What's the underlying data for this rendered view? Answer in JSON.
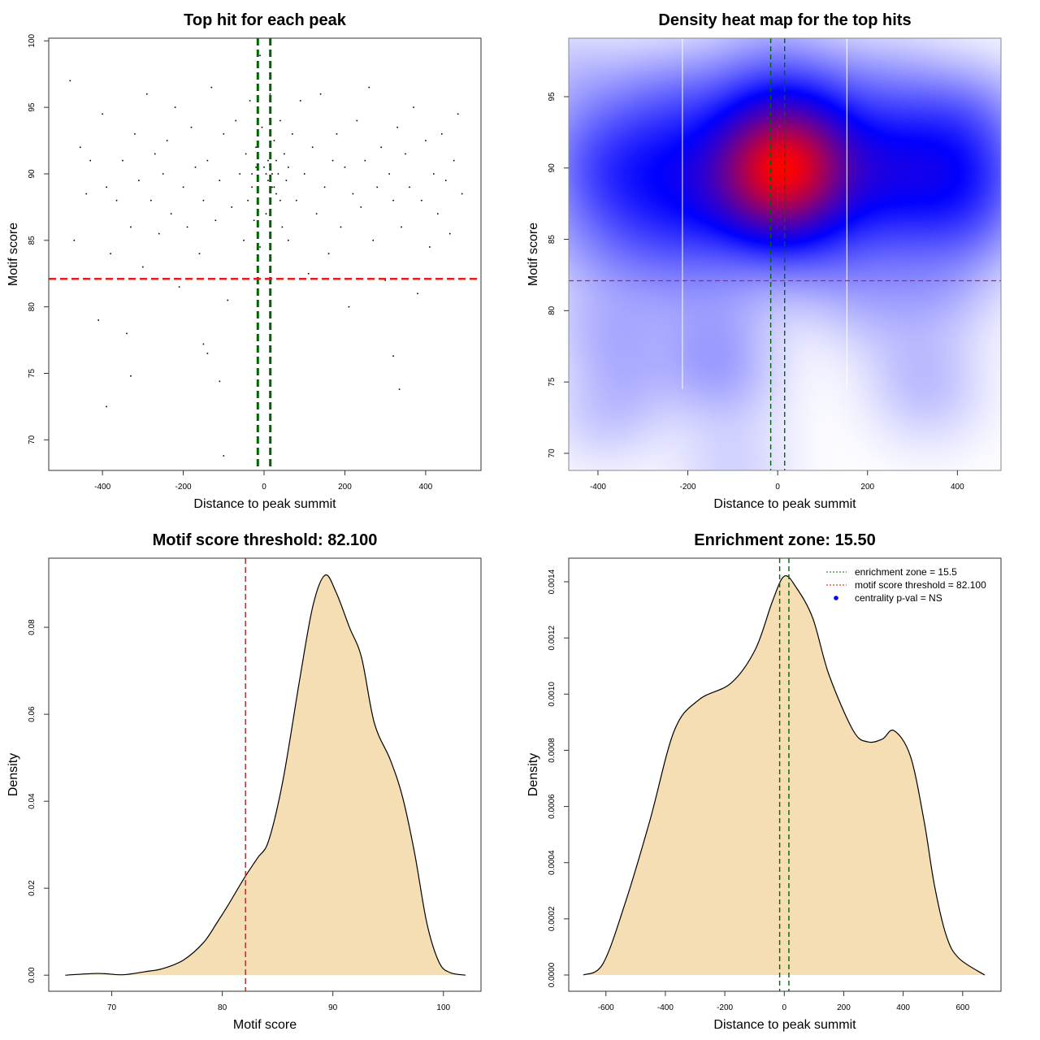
{
  "chart_data": [
    {
      "type": "scatter",
      "title": "Top hit for each peak",
      "xlabel": "Distance to peak summit",
      "ylabel": "Motif score",
      "xlim": [
        -533,
        537
      ],
      "ylim": [
        67.7,
        100.2
      ],
      "xticks": [
        -400,
        -200,
        0,
        200,
        400
      ],
      "xtick_labels": [
        "-400",
        "-200",
        "0",
        "200",
        "400"
      ],
      "yticks": [
        70,
        75,
        80,
        85,
        90,
        95,
        100
      ],
      "ytick_labels": [
        "70",
        "75",
        "80",
        "85",
        "90",
        "95",
        "100"
      ],
      "vlines": [
        -15.5,
        15.5
      ],
      "hline": 82.1,
      "x": [
        -480,
        -470,
        -455,
        -440,
        -430,
        -410,
        -400,
        -390,
        -380,
        -365,
        -350,
        -340,
        -330,
        -320,
        -310,
        -300,
        -290,
        -280,
        -270,
        -260,
        -250,
        -240,
        -230,
        -220,
        -210,
        -200,
        -190,
        -180,
        -170,
        -160,
        -150,
        -140,
        -130,
        -120,
        -110,
        -100,
        -90,
        -80,
        -70,
        -60,
        -50,
        -45,
        -40,
        -35,
        -30,
        -25,
        -20,
        -15,
        -10,
        -5,
        0,
        5,
        10,
        15,
        20,
        25,
        30,
        35,
        40,
        45,
        50,
        55,
        60,
        70,
        80,
        90,
        100,
        110,
        120,
        130,
        140,
        150,
        160,
        170,
        180,
        190,
        200,
        210,
        220,
        230,
        240,
        250,
        260,
        270,
        280,
        290,
        300,
        310,
        320,
        330,
        340,
        350,
        360,
        370,
        380,
        390,
        400,
        410,
        420,
        430,
        440,
        450,
        460,
        470,
        480,
        490,
        -390,
        -100,
        -330,
        -110,
        335,
        320,
        -140,
        -150,
        -10,
        20,
        30,
        10,
        -20,
        40,
        -30,
        60,
        15,
        25,
        5
      ],
      "y": [
        97,
        85,
        92,
        88.5,
        91,
        79,
        94.5,
        89,
        84,
        88,
        91,
        78,
        86,
        93,
        89.5,
        83,
        96,
        88,
        91.5,
        85.5,
        90,
        92.5,
        87,
        95,
        81.5,
        89,
        86,
        93.5,
        90.5,
        84,
        88,
        91,
        96.5,
        86.5,
        89.5,
        93,
        80.5,
        87.5,
        94,
        90,
        85,
        91.5,
        88,
        95.5,
        90,
        86.5,
        92,
        89,
        84.5,
        93.5,
        90.5,
        87,
        91,
        96,
        89,
        92.5,
        88.5,
        90,
        94,
        86,
        91.5,
        89.5,
        85,
        93,
        88,
        95.5,
        90,
        82.5,
        92,
        87,
        96,
        89,
        84,
        91,
        93,
        86,
        90.5,
        80,
        88.5,
        94,
        87.5,
        91,
        96.5,
        85,
        89,
        92,
        82,
        90,
        88,
        93.5,
        86,
        91.5,
        89,
        95,
        81,
        88,
        92.5,
        84.5,
        90,
        87,
        93,
        89.5,
        85.5,
        91,
        94.5,
        88.5,
        72.5,
        68.8,
        74.8,
        74.4,
        73.8,
        76.3,
        76.5,
        77.2,
        98.9,
        90,
        91,
        89.5,
        90.5,
        88,
        89,
        90.5,
        91.5,
        89,
        90
      ]
    },
    {
      "type": "heatmap",
      "title": "Density heat map for the top hits",
      "xlabel": "Distance to peak summit",
      "ylabel": "Motif score",
      "xlim": [
        -465,
        497
      ],
      "ylim": [
        68.8,
        99.1
      ],
      "xticks": [
        -400,
        -200,
        0,
        200,
        400
      ],
      "xtick_labels": [
        "-400",
        "-200",
        "0",
        "200",
        "400"
      ],
      "yticks": [
        70,
        75,
        80,
        85,
        90,
        95
      ],
      "ytick_labels": [
        "70",
        "75",
        "80",
        "85",
        "90",
        "95"
      ],
      "white_vlines": [
        -212,
        154
      ],
      "vlines": [
        -15.5,
        15.5
      ],
      "hline": 82.1,
      "colors": [
        "#FFFFFF",
        "#0000FF",
        "#FF0000"
      ]
    },
    {
      "type": "area",
      "title": "Motif score threshold: 82.100",
      "xlabel": "Motif score",
      "ylabel": "Density",
      "xlim": [
        64.3,
        103.4
      ],
      "ylim": [
        -0.0037,
        0.0959
      ],
      "xticks": [
        70,
        80,
        90,
        100
      ],
      "xtick_labels": [
        "70",
        "80",
        "90",
        "100"
      ],
      "yticks": [
        0,
        0.02,
        0.04,
        0.06,
        0.08
      ],
      "ytick_labels": [
        "0.00",
        "0.02",
        "0.04",
        "0.06",
        "0.08"
      ],
      "vline": 82.1,
      "fill": "#F5DEB3",
      "x": [
        65.8,
        68.75,
        71,
        73,
        74.6,
        76.5,
        78.3,
        79.5,
        80.5,
        82,
        83.2,
        84.2,
        85.5,
        87,
        88.2,
        89.3,
        90.3,
        91.5,
        92.6,
        93.75,
        95.2,
        96.3,
        97.4,
        98.5,
        99.6,
        100.6,
        102
      ],
      "y": [
        0,
        0.0004,
        0.0001,
        0.0008,
        0.0015,
        0.0035,
        0.0075,
        0.012,
        0.016,
        0.0224,
        0.027,
        0.031,
        0.045,
        0.068,
        0.085,
        0.092,
        0.088,
        0.08,
        0.073,
        0.058,
        0.0495,
        0.041,
        0.028,
        0.012,
        0.003,
        0.0006,
        0
      ]
    },
    {
      "type": "area",
      "title": "Enrichment zone: 15.50",
      "xlabel": "Distance to peak summit",
      "ylabel": "Density",
      "xlim": [
        -725,
        729
      ],
      "ylim": [
        -5.79e-05,
        0.001484
      ],
      "xticks": [
        -600,
        -400,
        -200,
        0,
        200,
        400,
        600
      ],
      "xtick_labels": [
        "-600",
        "-400",
        "-200",
        "0",
        "200",
        "400",
        "600"
      ],
      "yticks": [
        0,
        0.0002,
        0.0004,
        0.0006,
        0.0008,
        0.001,
        0.0012,
        0.0014
      ],
      "ytick_labels": [
        "0.0000",
        "0.0002",
        "0.0004",
        "0.0006",
        "0.0008",
        "0.0010",
        "0.0012",
        "0.0014"
      ],
      "vlines": [
        -15.5,
        15.5
      ],
      "fill": "#F5DEB3",
      "x": [
        -676,
        -610,
        -534,
        -452,
        -370,
        -287,
        -178,
        -97,
        -40,
        0,
        40,
        96,
        150,
        232,
        281,
        330,
        369,
        424,
        470,
        505,
        545,
        587,
        674
      ],
      "y": [
        0,
        4e-05,
        0.00026,
        0.00055,
        0.00087,
        0.00098,
        0.00104,
        0.00116,
        0.00133,
        0.00142,
        0.00138,
        0.00127,
        0.00107,
        0.00087,
        0.00083,
        0.00084,
        0.00087,
        0.00078,
        0.00055,
        0.00032,
        0.00014,
        6e-05,
        0
      ],
      "legend": {
        "position": "top-right",
        "items": [
          {
            "label": "enrichment zone = 15.5",
            "color": "#006400",
            "style": "dotted-line"
          },
          {
            "label": "motif score threshold = 82.100",
            "color": "#FF0000",
            "style": "dotted-line"
          },
          {
            "label": "centrality p-val = NS",
            "color": "#0000FF",
            "style": "dot"
          }
        ]
      }
    }
  ]
}
